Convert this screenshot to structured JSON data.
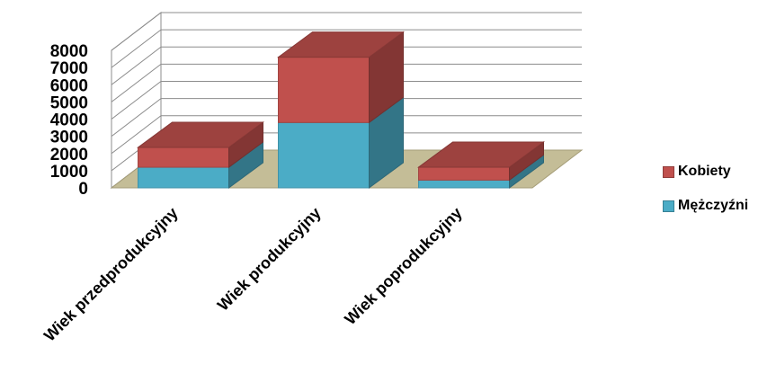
{
  "chart_data": {
    "type": "bar",
    "stacked": true,
    "three_d": true,
    "title": "",
    "xlabel": "",
    "ylabel": "",
    "categories": [
      "Wiek przedprodukcyjny",
      "Wiek produkcyjny",
      "Wiek poprodukcyjny"
    ],
    "series": [
      {
        "name": "Mężczyźni",
        "values": [
          1200,
          3800,
          450
        ],
        "color": "#4bacc6"
      },
      {
        "name": "Kobiety",
        "values": [
          1150,
          3800,
          750
        ],
        "color": "#c0504d"
      }
    ],
    "ylim": [
      0,
      8000
    ],
    "yticks": [
      "0",
      "1000",
      "2000",
      "3000",
      "4000",
      "5000",
      "6000",
      "7000",
      "8000"
    ],
    "grid": true,
    "legend_position": "right",
    "floor_color": "#c4bd97"
  },
  "legend": {
    "items": [
      {
        "label": "Kobiety",
        "color": "#c0504d"
      },
      {
        "label": "Mężczyźni",
        "color": "#4bacc6"
      }
    ]
  }
}
